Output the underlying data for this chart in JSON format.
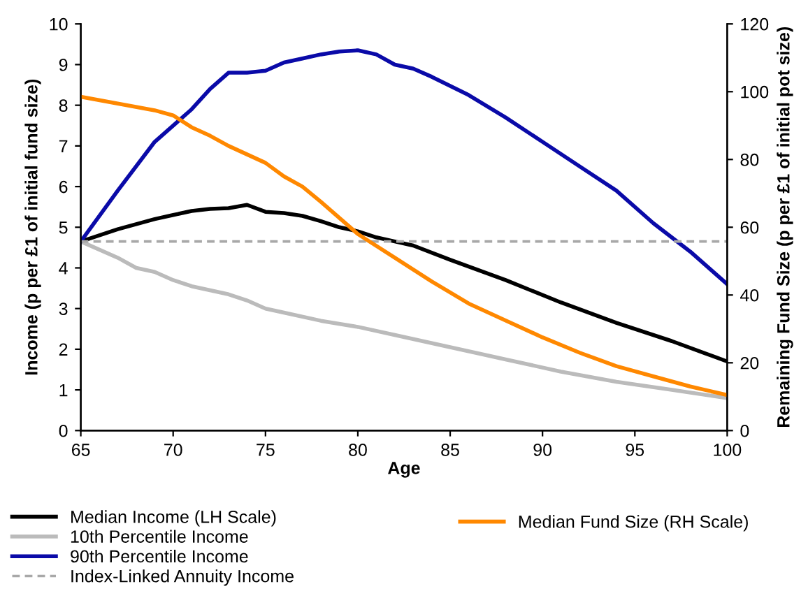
{
  "chart_data": {
    "type": "line",
    "xlabel": "Age",
    "ylabel": "Income (p per £1 of initial fund size)",
    "y2label": "Remaining Fund Size (p per £1 of initial pot size)",
    "xlim": [
      65,
      100
    ],
    "xticks": [
      65,
      70,
      75,
      80,
      85,
      90,
      95,
      100
    ],
    "ylim": [
      0,
      10
    ],
    "yticks": [
      0,
      1,
      2,
      3,
      4,
      5,
      6,
      7,
      8,
      9,
      10
    ],
    "y2lim": [
      0,
      120
    ],
    "y2ticks": [
      0,
      20,
      40,
      60,
      80,
      100,
      120
    ],
    "grid": false,
    "legend": "bottom",
    "marker": "none",
    "series": [
      {
        "name": "Median Income (LH Scale)",
        "color": "#000000",
        "x": [
          65,
          67,
          69,
          70,
          71,
          72,
          73,
          74,
          75,
          76,
          77,
          78,
          79,
          80,
          81,
          82,
          83,
          85,
          88,
          91,
          94,
          97,
          100
        ],
        "values": [
          4.65,
          4.95,
          5.2,
          5.3,
          5.4,
          5.45,
          5.47,
          5.55,
          5.38,
          5.35,
          5.28,
          5.15,
          5.0,
          4.9,
          4.75,
          4.65,
          4.55,
          4.2,
          3.7,
          3.15,
          2.65,
          2.2,
          1.7
        ]
      },
      {
        "name": "10th Percentile Income",
        "color": "#bbbbbb",
        "x": [
          65,
          67,
          68,
          69,
          70,
          71,
          72,
          73,
          74,
          75,
          76,
          78,
          80,
          82,
          85,
          88,
          91,
          94,
          97,
          100
        ],
        "values": [
          4.65,
          4.25,
          4.0,
          3.9,
          3.7,
          3.55,
          3.45,
          3.35,
          3.2,
          3.0,
          2.9,
          2.7,
          2.55,
          2.35,
          2.05,
          1.75,
          1.45,
          1.2,
          1.0,
          0.8
        ]
      },
      {
        "name": "90th Percentile Income",
        "color": "#0a0aa8",
        "x": [
          65,
          67,
          69,
          71,
          72,
          73,
          74,
          75,
          76,
          77,
          78,
          79,
          80,
          81,
          82,
          83,
          84,
          86,
          88,
          90,
          92,
          94,
          96,
          98,
          100
        ],
        "values": [
          4.65,
          5.9,
          7.1,
          7.9,
          8.4,
          8.8,
          8.8,
          8.85,
          9.05,
          9.15,
          9.25,
          9.32,
          9.35,
          9.25,
          9.0,
          8.9,
          8.7,
          8.25,
          7.7,
          7.1,
          6.5,
          5.9,
          5.1,
          4.4,
          3.6
        ]
      },
      {
        "name": "Index-Linked Annuity Income",
        "color": "#a8a8a8",
        "line_style": "dashed",
        "x": [
          65,
          100
        ],
        "values": [
          4.65,
          4.65
        ]
      },
      {
        "name": "Median Fund Size (RH Scale)",
        "color": "#ff8800",
        "axis": "y2",
        "x": [
          65,
          67,
          69,
          70,
          71,
          72,
          73,
          75,
          76,
          77,
          78,
          80,
          82,
          84,
          86,
          88,
          90,
          92,
          94,
          96,
          98,
          100
        ],
        "values": [
          98.5,
          96.5,
          94.5,
          93,
          89.5,
          87,
          84,
          79,
          75,
          72,
          67.5,
          58,
          51,
          44,
          37.5,
          32.5,
          27.5,
          23,
          19,
          16,
          13,
          10.5
        ]
      }
    ]
  }
}
